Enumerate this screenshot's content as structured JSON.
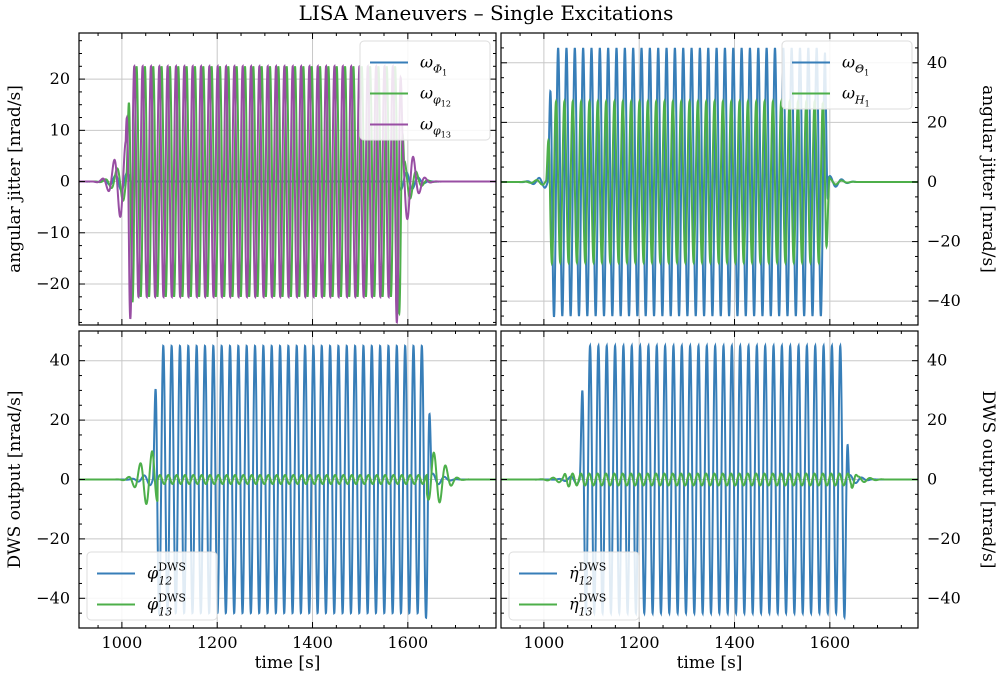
{
  "figure": {
    "title": "LISA Maneuvers – Single Excitations"
  },
  "chart_data": [
    {
      "type": "line",
      "panel": "top-left",
      "ylabel": "angular jitter [nrad/s]",
      "xlabel": "",
      "xlim": [
        910,
        1785
      ],
      "ylim": [
        -28,
        29
      ],
      "xticks": [
        1000,
        1200,
        1400,
        1600
      ],
      "yticks": [
        -20,
        -10,
        0,
        10,
        20
      ],
      "ytick_labels": [
        "−20",
        "−10",
        "0",
        "10",
        "20"
      ],
      "y_axis_side": "left",
      "grid": true,
      "legend_position": "top-right",
      "series": [
        {
          "name": "ωΦ₁",
          "legend_base": "ω",
          "legend_sub": "Φ",
          "legend_subsub": "1",
          "color": "#377eb8",
          "pre_amp": 1.8,
          "main_amp": 0,
          "period": 17.5,
          "t_on": 1005,
          "t_off": 1595,
          "phase": 0
        },
        {
          "name": "ωφ₁₂",
          "legend_base": "ω",
          "legend_sub": "φ",
          "legend_subsub": "12",
          "color": "#4daf4a",
          "pre_amp": 4,
          "main_amp": 22.5,
          "period": 17.5,
          "t_on": 1010,
          "t_off": 1592,
          "phase": 0.4
        },
        {
          "name": "ωφ₁₃",
          "legend_base": "ω",
          "legend_sub": "φ",
          "legend_subsub": "13",
          "color": "#984ea3",
          "pre_amp": 8,
          "main_amp": 22.5,
          "period": 17.5,
          "t_on": 1008,
          "t_off": 1590,
          "phase": 1.4
        }
      ]
    },
    {
      "type": "line",
      "panel": "top-right",
      "ylabel": "angular jitter [nrad/s]",
      "xlabel": "",
      "xlim": [
        910,
        1785
      ],
      "ylim": [
        -48,
        50
      ],
      "xticks": [
        1000,
        1200,
        1400,
        1600
      ],
      "yticks": [
        -40,
        -20,
        0,
        20,
        40
      ],
      "ytick_labels": [
        "−40",
        "−20",
        "0",
        "20",
        "40"
      ],
      "y_axis_side": "right",
      "grid": true,
      "legend_position": "top-right",
      "series": [
        {
          "name": "ωΘ₁",
          "legend_base": "ω",
          "legend_sub": "Θ",
          "legend_subsub": "1",
          "color": "#377eb8",
          "pre_amp": 2,
          "main_amp": 45,
          "period": 17.5,
          "t_on": 1008,
          "t_off": 1598,
          "phase": 0
        },
        {
          "name": "ωH₁",
          "legend_base": "ω",
          "legend_sub": "H",
          "legend_subsub": "1",
          "color": "#4daf4a",
          "pre_amp": 1,
          "main_amp": 27,
          "period": 17.5,
          "t_on": 1005,
          "t_off": 1600,
          "phase": 0.5
        }
      ]
    },
    {
      "type": "line",
      "panel": "bottom-left",
      "ylabel": "DWS output [nrad/s]",
      "xlabel": "time [s]",
      "xlim": [
        910,
        1785
      ],
      "ylim": [
        -50,
        50
      ],
      "xticks": [
        1000,
        1200,
        1400,
        1600
      ],
      "xtick_labels": [
        "1000",
        "1200",
        "1400",
        "1600"
      ],
      "yticks": [
        -40,
        -20,
        0,
        20,
        40
      ],
      "ytick_labels": [
        "−40",
        "−20",
        "0",
        "20",
        "40"
      ],
      "y_axis_side": "left",
      "grid": true,
      "legend_position": "bottom-left",
      "series": [
        {
          "name": "φ̇₁₂ᴰᵂˢ",
          "legend_base": "φ̇",
          "legend_sub": "12",
          "legend_sup": "DWS",
          "color": "#377eb8",
          "pre_amp": 2,
          "main_amp": 45,
          "period": 17.5,
          "t_on": 1065,
          "t_off": 1650,
          "phase": 0
        },
        {
          "name": "φ̇₁₃ᴰᵂˢ",
          "legend_base": "φ̇",
          "legend_sub": "13",
          "legend_sup": "DWS",
          "color": "#4daf4a",
          "pre_amp": 9,
          "main_amp": 1.5,
          "period": 17.5,
          "t_on": 1060,
          "t_off": 1655,
          "phase": 0.7
        }
      ]
    },
    {
      "type": "line",
      "panel": "bottom-right",
      "ylabel": "DWS output [nrad/s]",
      "xlabel": "time [s]",
      "xlim": [
        910,
        1785
      ],
      "ylim": [
        -50,
        50
      ],
      "xticks": [
        1000,
        1200,
        1400,
        1600
      ],
      "xtick_labels": [
        "1000",
        "1200",
        "1400",
        "1600"
      ],
      "yticks": [
        -40,
        -20,
        0,
        20,
        40
      ],
      "ytick_labels": [
        "−40",
        "−20",
        "0",
        "20",
        "40"
      ],
      "y_axis_side": "right",
      "grid": true,
      "legend_position": "bottom-left",
      "series": [
        {
          "name": "η̇₁₂ᴰᵂˢ",
          "legend_base": "η̇",
          "legend_sub": "12",
          "legend_sup": "DWS",
          "color": "#377eb8",
          "pre_amp": 1.5,
          "main_amp": 45,
          "period": 17.5,
          "t_on": 1075,
          "t_off": 1640,
          "phase": 0
        },
        {
          "name": "η̇₁₃ᴰᵂˢ",
          "legend_base": "η̇",
          "legend_sub": "13",
          "legend_sup": "DWS",
          "color": "#4daf4a",
          "pre_amp": 1,
          "main_amp": 2,
          "period": 17.5,
          "t_on": 1040,
          "t_off": 1660,
          "phase": 0.6
        }
      ]
    }
  ]
}
